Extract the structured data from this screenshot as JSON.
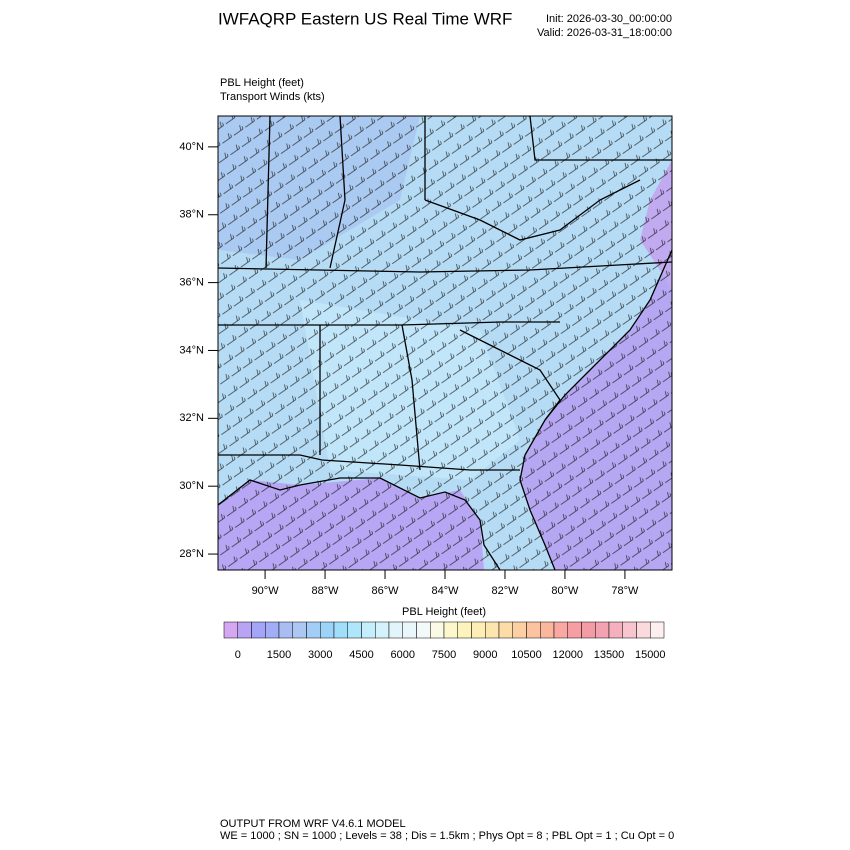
{
  "header": {
    "title": "IWFAQRP Eastern US Real Time WRF",
    "init": "Init: 2026-03-30_00:00:00",
    "valid": "Valid: 2026-03-31_18:00:00"
  },
  "subtitles": [
    "PBL Height   (feet)",
    "Transport Winds   (kts)"
  ],
  "map": {
    "lat_range": [
      27.53,
      40.91
    ],
    "lon_range": [
      -91.57,
      -76.43
    ],
    "lat_ticks": [
      {
        "value": 40,
        "label": "40°N"
      },
      {
        "value": 38,
        "label": "38°N"
      },
      {
        "value": 36,
        "label": "36°N"
      },
      {
        "value": 34,
        "label": "34°N"
      },
      {
        "value": 32,
        "label": "32°N"
      },
      {
        "value": 30,
        "label": "30°N"
      },
      {
        "value": 28,
        "label": "28°N"
      }
    ],
    "lon_ticks": [
      {
        "value": -90,
        "label": "90°W"
      },
      {
        "value": -88,
        "label": "88°W"
      },
      {
        "value": -86,
        "label": "86°W"
      },
      {
        "value": -84,
        "label": "84°W"
      },
      {
        "value": -82,
        "label": "82°W"
      },
      {
        "value": -80,
        "label": "80°W"
      },
      {
        "value": -78,
        "label": "78°W"
      }
    ]
  },
  "colorbar": {
    "title": "PBL Height  (feet)",
    "levels": [
      0,
      500,
      1000,
      1500,
      2000,
      2500,
      3000,
      3500,
      4000,
      4500,
      5000,
      5500,
      6000,
      6500,
      7000,
      7500,
      8000,
      8500,
      9000,
      9500,
      10000,
      10500,
      11000,
      11500,
      12000,
      12500,
      13000,
      13500,
      14000,
      14500,
      15000
    ],
    "label_every": 3,
    "colors": [
      "#d3a8f0",
      "#b9a3f5",
      "#a4a4f8",
      "#a1adf5",
      "#a9bdf2",
      "#acc8f2",
      "#a2cdf5",
      "#9cd4f7",
      "#a0defa",
      "#b0e6fb",
      "#c4eefc",
      "#d3f2fc",
      "#e1f5fb",
      "#eaf7fa",
      "#f3f9f9",
      "#fbfbe5",
      "#fcf8cc",
      "#fcf3bd",
      "#fdeeb6",
      "#fde6ad",
      "#fddca8",
      "#fdd0a4",
      "#fcc3a0",
      "#fbb69e",
      "#f9a9a2",
      "#f69ea3",
      "#f39ca6",
      "#f2a2b0",
      "#f4b0be",
      "#f8c4ce",
      "#fbdade",
      "#fdeef0"
    ]
  },
  "footer": [
    "OUTPUT FROM WRF V4.6.1 MODEL",
    "WE = 1000 ; SN = 1000 ; Levels = 38 ; Dis = 1.5km ; Phys Opt = 8 ; PBL Opt = 1 ; Cu Opt = 0"
  ]
}
